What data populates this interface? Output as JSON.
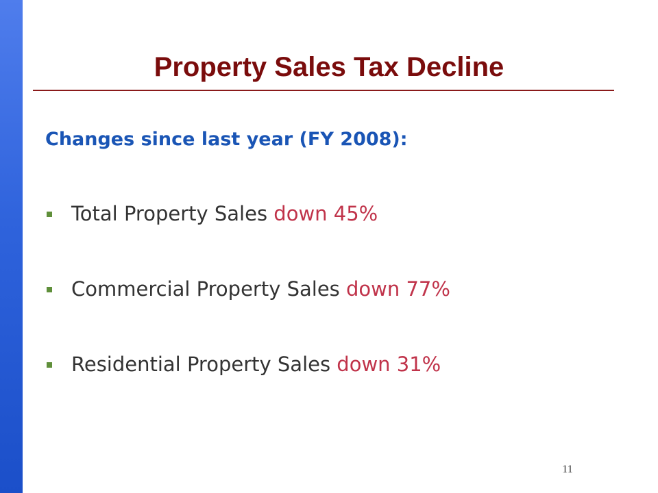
{
  "slide": {
    "title": "Property Sales Tax Decline",
    "subtitle": "Changes since last year (FY 2008):",
    "bullets": [
      {
        "label": "Total Property Sales",
        "change": "down 45%"
      },
      {
        "label": "Commercial Property Sales",
        "change": "down 77%"
      },
      {
        "label": "Residential Property Sales",
        "change": "down 31%"
      }
    ],
    "page_number": "11"
  },
  "colors": {
    "side_bar": "#2f63dc",
    "title": "#7a0c0c",
    "subtitle": "#1a55b5",
    "change_text": "#c0334a",
    "bullet_marker": "#5f8f3a"
  }
}
